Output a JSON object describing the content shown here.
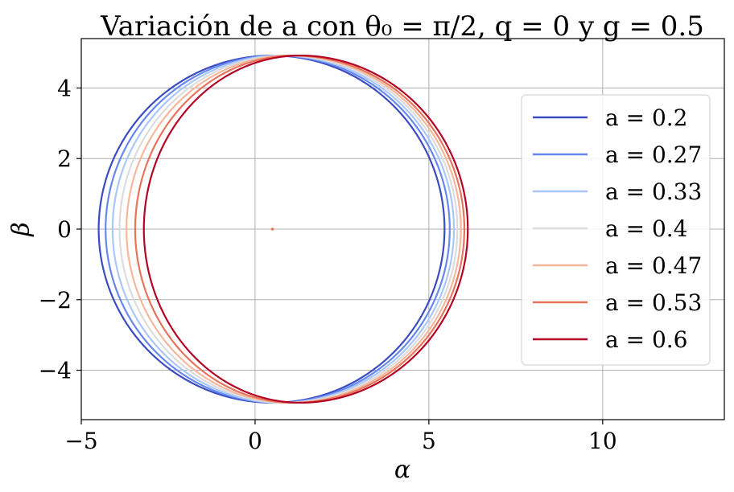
{
  "chart_data": {
    "type": "line",
    "title": "Variación de a con θ₀ = π/2, q = 0 y g = 0.5",
    "xlabel": "α",
    "ylabel": "β",
    "xlim": [
      -5,
      13.5
    ],
    "ylim": [
      -5.4,
      5.4
    ],
    "xticks": [
      -5,
      0,
      5,
      10
    ],
    "yticks": [
      -4,
      -2,
      0,
      2,
      4
    ],
    "xtick_labels": [
      "−5",
      "0",
      "5",
      "10"
    ],
    "ytick_labels": [
      "−4",
      "−2",
      "0",
      "2",
      "4"
    ],
    "grid": true,
    "legend_position": "right",
    "center_marker": {
      "x": 0.5,
      "y": 0,
      "color": "#e8774f"
    },
    "series": [
      {
        "name": "a = 0.2",
        "color": "#3b4cc0",
        "alpha_left": -4.5,
        "alpha_right": 5.45,
        "top_alpha": 0.5,
        "half_height": 4.92
      },
      {
        "name": "a = 0.27",
        "color": "#6688ee",
        "alpha_left": -4.3,
        "alpha_right": 5.6,
        "top_alpha": 0.62,
        "half_height": 4.92
      },
      {
        "name": "a = 0.33",
        "color": "#aac7fd",
        "alpha_left": -4.1,
        "alpha_right": 5.72,
        "top_alpha": 0.75,
        "half_height": 4.92
      },
      {
        "name": "a = 0.4",
        "color": "#dddcdc",
        "alpha_left": -3.9,
        "alpha_right": 5.82,
        "top_alpha": 0.88,
        "half_height": 4.92
      },
      {
        "name": "a = 0.47",
        "color": "#f6b89c",
        "alpha_left": -3.7,
        "alpha_right": 5.92,
        "top_alpha": 1.0,
        "half_height": 4.92
      },
      {
        "name": "a = 0.53",
        "color": "#e7745b",
        "alpha_left": -3.45,
        "alpha_right": 6.02,
        "top_alpha": 1.12,
        "half_height": 4.92
      },
      {
        "name": "a = 0.6",
        "color": "#b40426",
        "alpha_left": -3.2,
        "alpha_right": 6.12,
        "top_alpha": 1.3,
        "half_height": 4.92
      }
    ]
  }
}
